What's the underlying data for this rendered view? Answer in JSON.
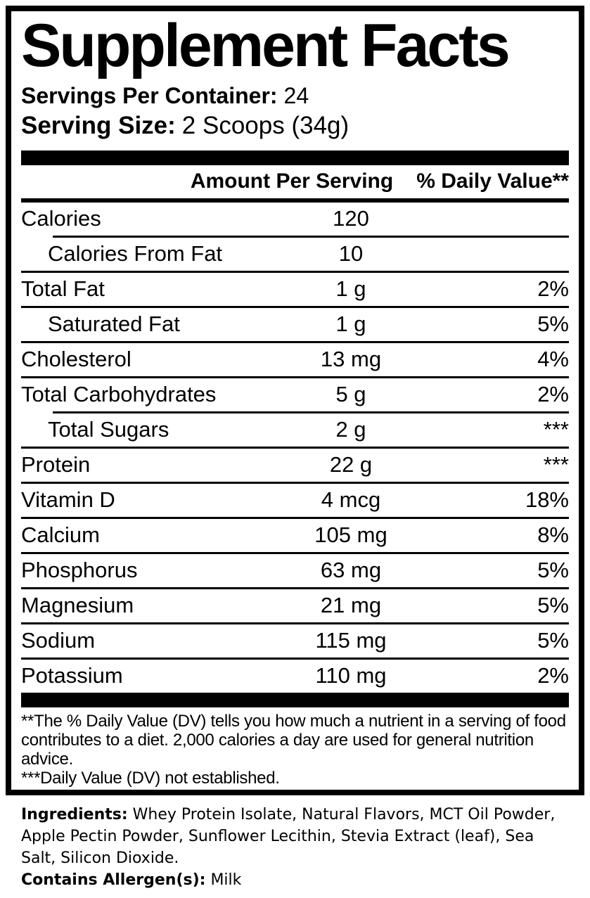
{
  "label": {
    "title": "Supplement Facts",
    "servings_per_container": {
      "label": "Servings Per Container:",
      "value": "24"
    },
    "serving_size": {
      "label": "Serving Size:",
      "value": "2 Scoops (34g)"
    },
    "table": {
      "headers": {
        "amount": "Amount Per Serving",
        "daily_value": "% Daily Value**"
      },
      "rows": [
        {
          "name": "Calories",
          "amount": "120",
          "dv": "",
          "indent": false,
          "divider_above": "none"
        },
        {
          "name": "Calories From Fat",
          "amount": "10",
          "dv": "",
          "indent": true,
          "divider_above": "indent"
        },
        {
          "name": "Total Fat",
          "amount": "1 g",
          "dv": "2%",
          "indent": false,
          "divider_above": "full"
        },
        {
          "name": "Saturated Fat",
          "amount": "1 g",
          "dv": "5%",
          "indent": true,
          "divider_above": "full"
        },
        {
          "name": "Cholesterol",
          "amount": "13 mg",
          "dv": "4%",
          "indent": false,
          "divider_above": "full"
        },
        {
          "name": "Total Carbohydrates",
          "amount": "5 g",
          "dv": "2%",
          "indent": false,
          "divider_above": "full"
        },
        {
          "name": "Total Sugars",
          "amount": "2 g",
          "dv": "***",
          "indent": true,
          "divider_above": "indent"
        },
        {
          "name": "Protein",
          "amount": "22 g",
          "dv": "***",
          "indent": false,
          "divider_above": "full"
        },
        {
          "name": "Vitamin D",
          "amount": "4 mcg",
          "dv": "18%",
          "indent": false,
          "divider_above": "full"
        },
        {
          "name": "Calcium",
          "amount": "105 mg",
          "dv": "8%",
          "indent": false,
          "divider_above": "full"
        },
        {
          "name": "Phosphorus",
          "amount": "63 mg",
          "dv": "5%",
          "indent": false,
          "divider_above": "full"
        },
        {
          "name": "Magnesium",
          "amount": "21 mg",
          "dv": "5%",
          "indent": false,
          "divider_above": "full"
        },
        {
          "name": "Sodium",
          "amount": "115 mg",
          "dv": "5%",
          "indent": false,
          "divider_above": "full"
        },
        {
          "name": "Potassium",
          "amount": "110 mg",
          "dv": "2%",
          "indent": false,
          "divider_above": "full"
        }
      ]
    },
    "footnotes": [
      "**The % Daily Value (DV) tells you how much a nutrient in a serving of food contributes to a diet. 2,000 calories a day are used for general nutrition advice.",
      "***Daily Value (DV) not established."
    ],
    "ingredients": {
      "label": "Ingredients:",
      "value": "Whey Protein Isolate, Natural Flavors, MCT Oil Powder, Apple Pectin Powder, Sunflower Lecithin, Stevia Extract (leaf), Sea Salt, Silicon Dioxide."
    },
    "allergens": {
      "label": "Contains Allergen(s):",
      "value": "Milk"
    }
  },
  "colors": {
    "text": "#000000",
    "background": "#ffffff",
    "rule": "#000000"
  }
}
